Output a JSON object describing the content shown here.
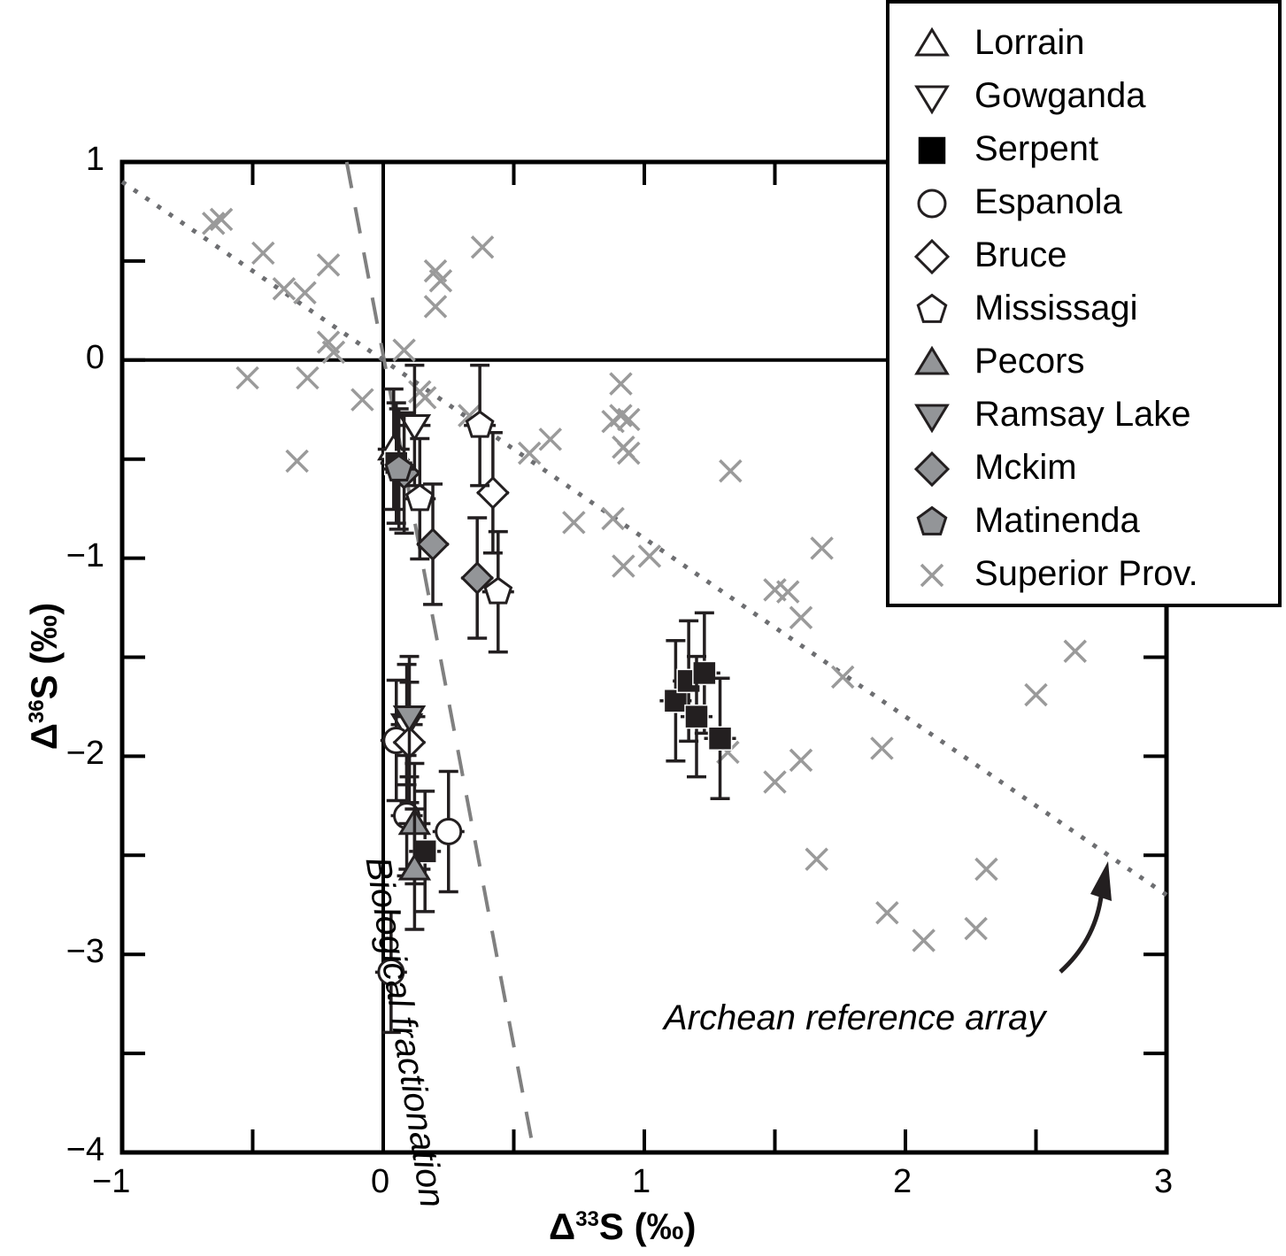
{
  "chart_data": {
    "type": "scatter",
    "title": "",
    "xlabel": "Δ33S (‰)",
    "ylabel": "Δ36S (‰)",
    "xlim": [
      -1,
      3
    ],
    "ylim": [
      -4,
      1
    ],
    "xticks": [
      "−1",
      "0",
      "1",
      "2",
      "3"
    ],
    "yticks": [
      "1",
      "0",
      "−1",
      "−2",
      "−3",
      "−4"
    ],
    "grid": false,
    "legend_position": "upper right",
    "annotations": [
      {
        "text": "Biological fractionation",
        "type": "dashed-line",
        "from": [
          -0.14,
          1.0
        ],
        "to": [
          0.57,
          -3.95
        ]
      },
      {
        "text": "Archean reference array",
        "type": "dotted-line",
        "from": [
          -1.0,
          0.9
        ],
        "to": [
          3.0,
          -2.7
        ]
      }
    ],
    "series": [
      {
        "name": "Lorrain",
        "marker": "triangle-up",
        "fill": "#ffffff",
        "points": [
          [
            0.04,
            -0.45
          ]
        ]
      },
      {
        "name": "Gowganda",
        "marker": "triangle-down",
        "fill": "#ffffff",
        "points": [
          [
            0.12,
            -0.33
          ],
          [
            0.09,
            -1.84
          ]
        ]
      },
      {
        "name": "Serpent",
        "marker": "square",
        "fill": "#231f20",
        "points": [
          [
            0.05,
            -0.52
          ],
          [
            1.12,
            -1.72
          ],
          [
            1.17,
            -1.62
          ],
          [
            1.23,
            -1.58
          ],
          [
            1.2,
            -1.8
          ],
          [
            1.29,
            -1.91
          ],
          [
            0.16,
            -2.48
          ]
        ]
      },
      {
        "name": "Espanola",
        "marker": "circle",
        "fill": "#ffffff",
        "points": [
          [
            0.05,
            -1.92
          ],
          [
            0.09,
            -2.3
          ],
          [
            0.25,
            -2.38
          ],
          [
            0.03,
            -3.09
          ]
        ]
      },
      {
        "name": "Bruce",
        "marker": "diamond",
        "fill": "#ffffff",
        "points": [
          [
            0.1,
            -1.93
          ],
          [
            0.42,
            -0.67
          ]
        ]
      },
      {
        "name": "Mississagi",
        "marker": "pentagon",
        "fill": "#ffffff",
        "points": [
          [
            0.14,
            -0.7
          ],
          [
            0.37,
            -0.33
          ],
          [
            0.44,
            -1.17
          ]
        ]
      },
      {
        "name": "Pecors",
        "marker": "triangle-up",
        "fill": "#939598",
        "points": [
          [
            0.12,
            -2.34
          ],
          [
            0.12,
            -2.57
          ]
        ]
      },
      {
        "name": "Ramsay Lake",
        "marker": "triangle-down",
        "fill": "#939598",
        "points": [
          [
            0.1,
            -1.8
          ]
        ]
      },
      {
        "name": "Mckim",
        "marker": "diamond",
        "fill": "#939598",
        "points": [
          [
            0.08,
            -0.57
          ],
          [
            0.19,
            -0.93
          ],
          [
            0.36,
            -1.1
          ]
        ]
      },
      {
        "name": "Matinenda",
        "marker": "pentagon",
        "fill": "#939598",
        "points": [
          [
            0.06,
            -0.55
          ]
        ]
      },
      {
        "name": "Superior Prov.",
        "marker": "x",
        "fill": "#939598",
        "points": [
          [
            -0.65,
            0.69
          ],
          [
            -0.62,
            0.71
          ],
          [
            -0.46,
            0.54
          ],
          [
            -0.38,
            0.36
          ],
          [
            -0.3,
            0.34
          ],
          [
            -0.21,
            0.48
          ],
          [
            -0.21,
            0.09
          ],
          [
            -0.19,
            0.04
          ],
          [
            -0.52,
            -0.09
          ],
          [
            -0.29,
            -0.09
          ],
          [
            -0.08,
            -0.2
          ],
          [
            -0.33,
            -0.51
          ],
          [
            0.08,
            0.05
          ],
          [
            0.2,
            0.27
          ],
          [
            0.2,
            0.45
          ],
          [
            0.22,
            0.4
          ],
          [
            0.38,
            0.57
          ],
          [
            0.14,
            -0.16
          ],
          [
            0.16,
            -0.19
          ],
          [
            0.33,
            -0.28
          ],
          [
            0.56,
            -0.47
          ],
          [
            0.64,
            -0.4
          ],
          [
            0.73,
            -0.82
          ],
          [
            0.91,
            -0.12
          ],
          [
            0.88,
            -0.31
          ],
          [
            0.91,
            -0.28
          ],
          [
            0.94,
            -0.3
          ],
          [
            0.92,
            -0.44
          ],
          [
            0.94,
            -0.47
          ],
          [
            0.92,
            -1.04
          ],
          [
            0.88,
            -0.8
          ],
          [
            1.02,
            -0.99
          ],
          [
            1.33,
            -0.56
          ],
          [
            1.5,
            -1.16
          ],
          [
            1.55,
            -1.17
          ],
          [
            1.6,
            -1.3
          ],
          [
            1.68,
            -0.95
          ],
          [
            1.76,
            -1.6
          ],
          [
            1.5,
            -2.13
          ],
          [
            1.6,
            -2.02
          ],
          [
            1.66,
            -2.52
          ],
          [
            1.91,
            -1.96
          ],
          [
            1.93,
            -2.79
          ],
          [
            2.07,
            -2.93
          ],
          [
            2.27,
            -2.87
          ],
          [
            2.31,
            -2.57
          ],
          [
            2.5,
            -1.69
          ],
          [
            2.65,
            -1.47
          ],
          [
            1.32,
            -1.98
          ]
        ]
      }
    ]
  },
  "legend": {
    "items": [
      {
        "label": "Lorrain",
        "icon": "open-triangle-up"
      },
      {
        "label": "Gowganda",
        "icon": "open-triangle-down"
      },
      {
        "label": "Serpent",
        "icon": "filled-black-square"
      },
      {
        "label": "Espanola",
        "icon": "open-circle"
      },
      {
        "label": "Bruce",
        "icon": "open-diamond"
      },
      {
        "label": "Mississagi",
        "icon": "open-pentagon"
      },
      {
        "label": "Pecors",
        "icon": "gray-triangle-up"
      },
      {
        "label": "Ramsay Lake",
        "icon": "gray-triangle-down"
      },
      {
        "label": "Mckim",
        "icon": "gray-diamond"
      },
      {
        "label": "Matinenda",
        "icon": "gray-pentagon"
      },
      {
        "label": "Superior Prov.",
        "icon": "gray-x"
      }
    ]
  },
  "axes": {
    "xlabel": "Δ33S (‰)",
    "ylabel": "Δ36S (‰)",
    "xlabel_parts": {
      "delta": "Δ",
      "sup": "33",
      "rest": "S (‰)"
    },
    "ylabel_parts": {
      "delta": "Δ",
      "sup": "36",
      "rest": "S (‰)"
    }
  },
  "annotations": {
    "bio": "Biological fractionation",
    "archean": "Archean reference array"
  },
  "colors": {
    "gray_fill": "#939598",
    "cross": "#9a9a9a",
    "dark": "#231f20",
    "line": "#808080",
    "dotted": "#6d6e71"
  }
}
